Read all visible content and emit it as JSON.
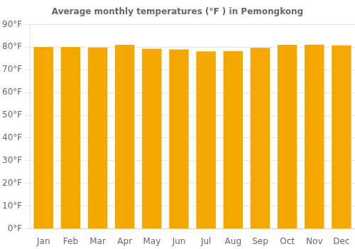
{
  "chart_data": {
    "type": "bar",
    "title": "Average monthly temperatures (°F ) in Pemongkong",
    "categories": [
      "Jan",
      "Feb",
      "Mar",
      "Apr",
      "May",
      "Jun",
      "Jul",
      "Aug",
      "Sep",
      "Oct",
      "Nov",
      "Dec"
    ],
    "values": [
      80.1,
      80.1,
      79.9,
      81.0,
      79.3,
      79.0,
      78.1,
      78.3,
      79.7,
      81.0,
      81.1,
      80.8
    ],
    "color": "#F5A800",
    "ylim": [
      0,
      90
    ],
    "yticks": [
      {
        "value": 0,
        "label": "0°F"
      },
      {
        "value": 10,
        "label": "10°F"
      },
      {
        "value": 20,
        "label": "20°F"
      },
      {
        "value": 30,
        "label": "30°F"
      },
      {
        "value": 40,
        "label": "40°F"
      },
      {
        "value": 50,
        "label": "50°F"
      },
      {
        "value": 60,
        "label": "60°F"
      },
      {
        "value": 70,
        "label": "70°F"
      },
      {
        "value": 80,
        "label": "80°F"
      },
      {
        "value": 90,
        "label": "90°F"
      }
    ],
    "grid": true
  }
}
